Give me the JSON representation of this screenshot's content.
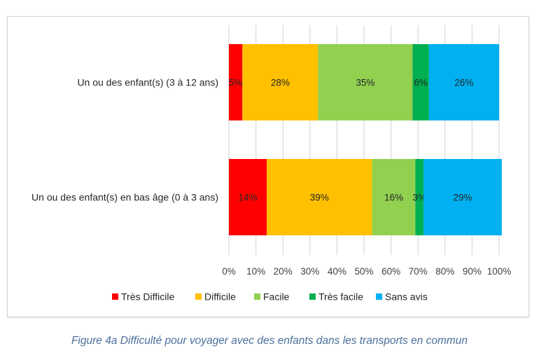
{
  "chart_data": {
    "type": "bar",
    "orientation": "horizontal",
    "stacked": true,
    "normalized_percent": true,
    "title": "",
    "xlabel": "",
    "ylabel": "",
    "xlim": [
      0,
      100
    ],
    "grid": true,
    "legend_position": "bottom",
    "categories": [
      "Un ou des enfant(s) (3 à 12 ans)",
      "Un ou des enfant(s) en bas âge (0 à 3 ans)"
    ],
    "x_ticks": [
      "0%",
      "10%",
      "20%",
      "30%",
      "40%",
      "50%",
      "60%",
      "70%",
      "80%",
      "90%",
      "100%"
    ],
    "series": [
      {
        "name": "Très Difficile",
        "color": "#ff0000",
        "values": [
          5,
          14
        ],
        "labels": [
          "5%",
          "14%"
        ]
      },
      {
        "name": "Difficile",
        "color": "#ffc000",
        "values": [
          28,
          39
        ],
        "labels": [
          "28%",
          "39%"
        ]
      },
      {
        "name": "Facile",
        "color": "#92d050",
        "values": [
          35,
          16
        ],
        "labels": [
          "35%",
          "16%"
        ]
      },
      {
        "name": "Très facile",
        "color": "#00b050",
        "values": [
          6,
          3
        ],
        "labels": [
          "6%",
          "3%"
        ]
      },
      {
        "name": "Sans avis",
        "color": "#00b0f0",
        "values": [
          26,
          29
        ],
        "labels": [
          "26%",
          "29%"
        ]
      }
    ]
  },
  "caption": "Figure 4a Difficulté pour voyager avec des enfants dans les transports en commun"
}
